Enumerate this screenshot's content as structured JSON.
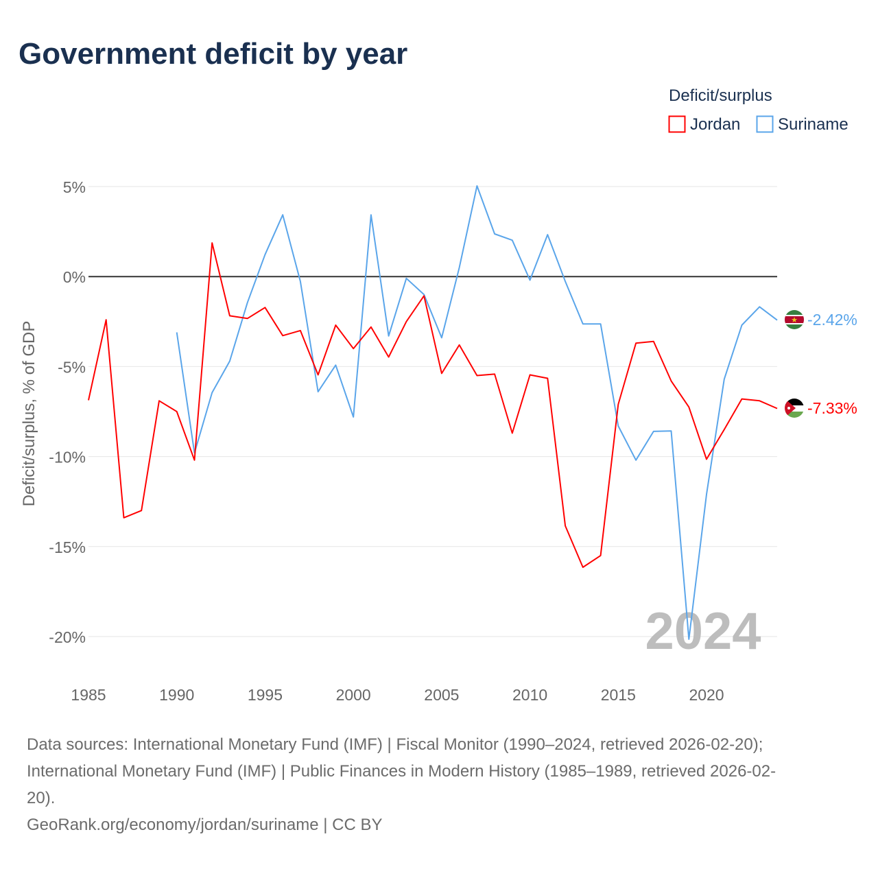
{
  "chart_data": {
    "type": "line",
    "title": "Government deficit by year",
    "ylabel": "Deficit/surplus, % of GDP",
    "xlabel": "",
    "legend_title": "Deficit/surplus",
    "legend_position": "top-right",
    "xlim": [
      1985,
      2024
    ],
    "ylim": [
      -20,
      5
    ],
    "x_ticks": [
      1985,
      1990,
      1995,
      2000,
      2005,
      2010,
      2015,
      2020
    ],
    "x_tick_labels": [
      "1985",
      "1990",
      "1995",
      "2000",
      "2005",
      "2010",
      "2015",
      "2020"
    ],
    "y_ticks": [
      5,
      0,
      -5,
      -10,
      -15,
      -20
    ],
    "y_tick_labels": [
      "5%",
      "0%",
      "-5%",
      "-10%",
      "-15%",
      "-20%"
    ],
    "grid": true,
    "watermark_year": "2024",
    "series": [
      {
        "name": "Jordan",
        "color": "#ff0000",
        "end_label": "-7.33%",
        "x": [
          1985,
          1986,
          1987,
          1988,
          1989,
          1990,
          1991,
          1992,
          1993,
          1994,
          1995,
          1996,
          1997,
          1998,
          1999,
          2000,
          2001,
          2002,
          2003,
          2004,
          2005,
          2006,
          2007,
          2008,
          2009,
          2010,
          2011,
          2012,
          2013,
          2014,
          2015,
          2016,
          2017,
          2018,
          2019,
          2020,
          2021,
          2022,
          2023,
          2024
        ],
        "values": [
          -6.87,
          -2.4,
          -13.4,
          -13.0,
          -6.9,
          -7.5,
          -10.2,
          1.87,
          -2.18,
          -2.33,
          -1.72,
          -3.28,
          -3.0,
          -5.46,
          -2.7,
          -4.0,
          -2.8,
          -4.47,
          -2.5,
          -1.07,
          -5.38,
          -3.8,
          -5.5,
          -5.42,
          -8.7,
          -5.46,
          -5.65,
          -13.85,
          -16.15,
          -15.5,
          -7.1,
          -3.7,
          -3.6,
          -5.8,
          -7.25,
          -10.15,
          -8.5,
          -6.8,
          -6.9,
          -7.33
        ]
      },
      {
        "name": "Suriname",
        "color": "#5aa5ea",
        "end_label": "-2.42%",
        "x": [
          1990,
          1991,
          1992,
          1993,
          1994,
          1995,
          1996,
          1997,
          1998,
          1999,
          2000,
          2001,
          2002,
          2003,
          2004,
          2005,
          2006,
          2007,
          2008,
          2009,
          2010,
          2011,
          2012,
          2013,
          2014,
          2015,
          2016,
          2017,
          2018,
          2019,
          2020,
          2021,
          2022,
          2023,
          2024
        ],
        "values": [
          -3.1,
          -9.8,
          -6.45,
          -4.7,
          -1.45,
          1.22,
          3.43,
          -0.27,
          -6.4,
          -4.92,
          -7.8,
          3.43,
          -3.3,
          -0.1,
          -1.0,
          -3.4,
          0.5,
          5.04,
          2.37,
          2.02,
          -0.2,
          2.33,
          -0.27,
          -2.63,
          -2.63,
          -8.3,
          -10.2,
          -8.6,
          -8.58,
          -20.15,
          -12.1,
          -5.7,
          -2.7,
          -1.68,
          -2.42
        ]
      }
    ]
  },
  "footer": {
    "line1": "Data sources: International Monetary Fund (IMF) | Fiscal Monitor (1990–2024, retrieved 2026-02-20);",
    "line2": "International Monetary Fund (IMF) | Public Finances in Modern History (1985–1989, retrieved 2026-02-",
    "line3": "20).",
    "line4": "GeoRank.org/economy/jordan/suriname | CC BY"
  }
}
